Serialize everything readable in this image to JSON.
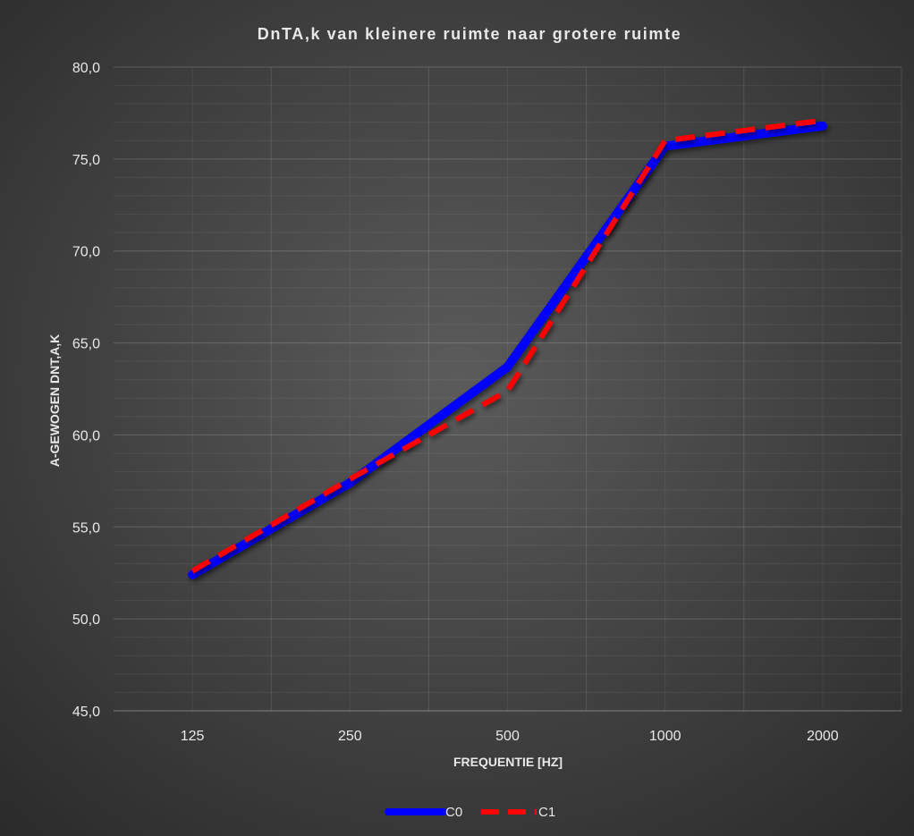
{
  "chart_data": {
    "type": "line",
    "title": "DnTA,k van kleinere ruimte naar grotere ruimte",
    "xlabel": "FREQUENTIE [HZ]",
    "ylabel": "A-GEWOGEN DNT,A,K",
    "categories": [
      "125",
      "250",
      "500",
      "1000",
      "2000"
    ],
    "ylim": [
      45,
      80
    ],
    "ytick_labels": [
      "45,0",
      "50,0",
      "55,0",
      "60,0",
      "65,0",
      "70,0",
      "75,0",
      "80,0"
    ],
    "grid": true,
    "legend_position": "bottom",
    "series": [
      {
        "name": "C0",
        "values": [
          52.4,
          57.4,
          63.7,
          75.7,
          76.8
        ],
        "color": "#0000ff",
        "style": "solid"
      },
      {
        "name": "C1",
        "values": [
          52.6,
          57.6,
          62.4,
          76.0,
          77.1
        ],
        "color": "#ff0000",
        "style": "dashed"
      }
    ],
    "colors": {
      "background_center": "#5b5b5b",
      "background_edge": "#2a2a2a",
      "text": "#e8e8e8"
    }
  }
}
